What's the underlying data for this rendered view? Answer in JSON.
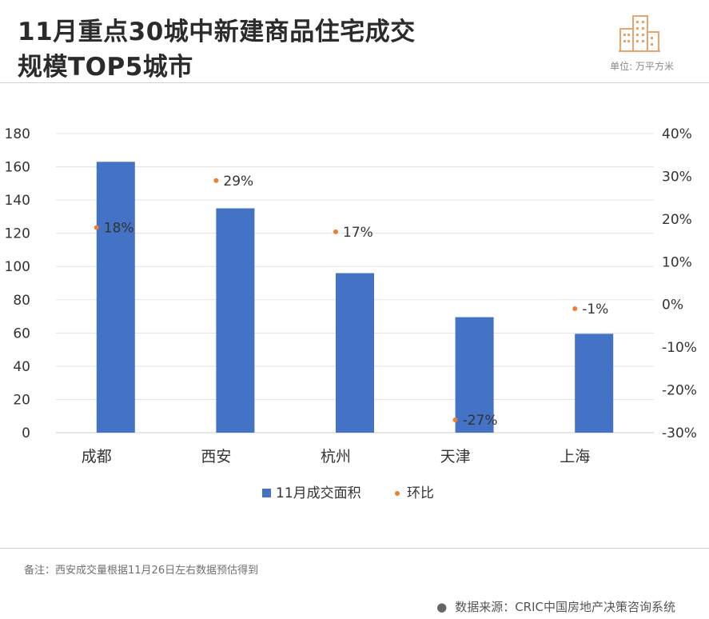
{
  "header": {
    "title_line1": "11月重点30城中新建商品住宅成交",
    "title_line2": "规模TOP5城市",
    "unit": "单位: 万平方米",
    "logo_icon": "building-icon"
  },
  "chart_data": {
    "type": "bar",
    "categories": [
      "成都",
      "西安",
      "杭州",
      "天津",
      "上海"
    ],
    "series": [
      {
        "name": "11月成交面积",
        "type": "bar",
        "axis": "left",
        "color": "#4472c4",
        "values": [
          163,
          135,
          96,
          69.5,
          59.5
        ]
      },
      {
        "name": "环比",
        "type": "scatter",
        "axis": "right",
        "color": "#ed7d31",
        "values": [
          18,
          29,
          17,
          -27,
          -1
        ],
        "labels": [
          "18%",
          "29%",
          "17%",
          "-27%",
          "-1%"
        ]
      }
    ],
    "y_left": {
      "min": 0,
      "max": 180,
      "ticks": [
        0,
        20,
        40,
        60,
        80,
        100,
        120,
        140,
        160,
        180
      ]
    },
    "y_right": {
      "min": -30,
      "max": 40,
      "ticks": [
        "-30%",
        "-20%",
        "-10%",
        "0%",
        "10%",
        "20%",
        "30%",
        "40%"
      ]
    },
    "grid": true,
    "legend_position": "bottom"
  },
  "footer": {
    "note": "备注：西安成交量根据11月26日左右数据预估得到",
    "source": "数据来源：CRIC中国房地产决策咨询系统",
    "source_bullet": "●"
  }
}
